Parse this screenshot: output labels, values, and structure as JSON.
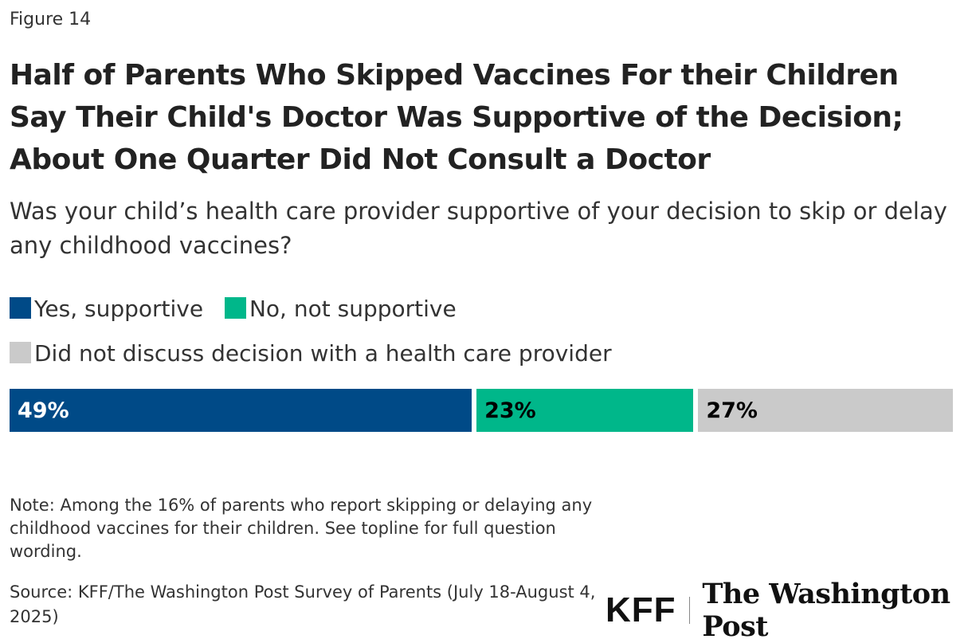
{
  "figure_label": "Figure 14",
  "chart_data": {
    "type": "bar",
    "orientation": "horizontal-stacked",
    "title": "Half of Parents Who Skipped Vaccines For their Children Say Their Child's Doctor Was Supportive of the Decision; About One Quarter Did Not Consult a Doctor",
    "subtitle": "Was your child’s health care provider supportive of your decision to skip or delay any childhood vaccines?",
    "legend_position": "top",
    "series": [
      {
        "name": "Yes, supportive",
        "value": 49,
        "label": "49%",
        "color": "#004a87",
        "label_color": "#ffffff"
      },
      {
        "name": "No, not supportive",
        "value": 23,
        "label": "23%",
        "color": "#00b78a",
        "label_color": "#000000"
      },
      {
        "name": "Did not discuss decision with a health care provider",
        "value": 27,
        "label": "27%",
        "color": "#cacaca",
        "label_color": "#000000"
      }
    ]
  },
  "note": "Note: Among the 16% of parents who report skipping or delaying any childhood vaccines for their children. See topline for full question wording.",
  "source": "Source: KFF/The Washington Post Survey of Parents (July 18-August 4, 2025)",
  "logos": {
    "kff": "KFF",
    "wapo": "The Washington Post"
  }
}
